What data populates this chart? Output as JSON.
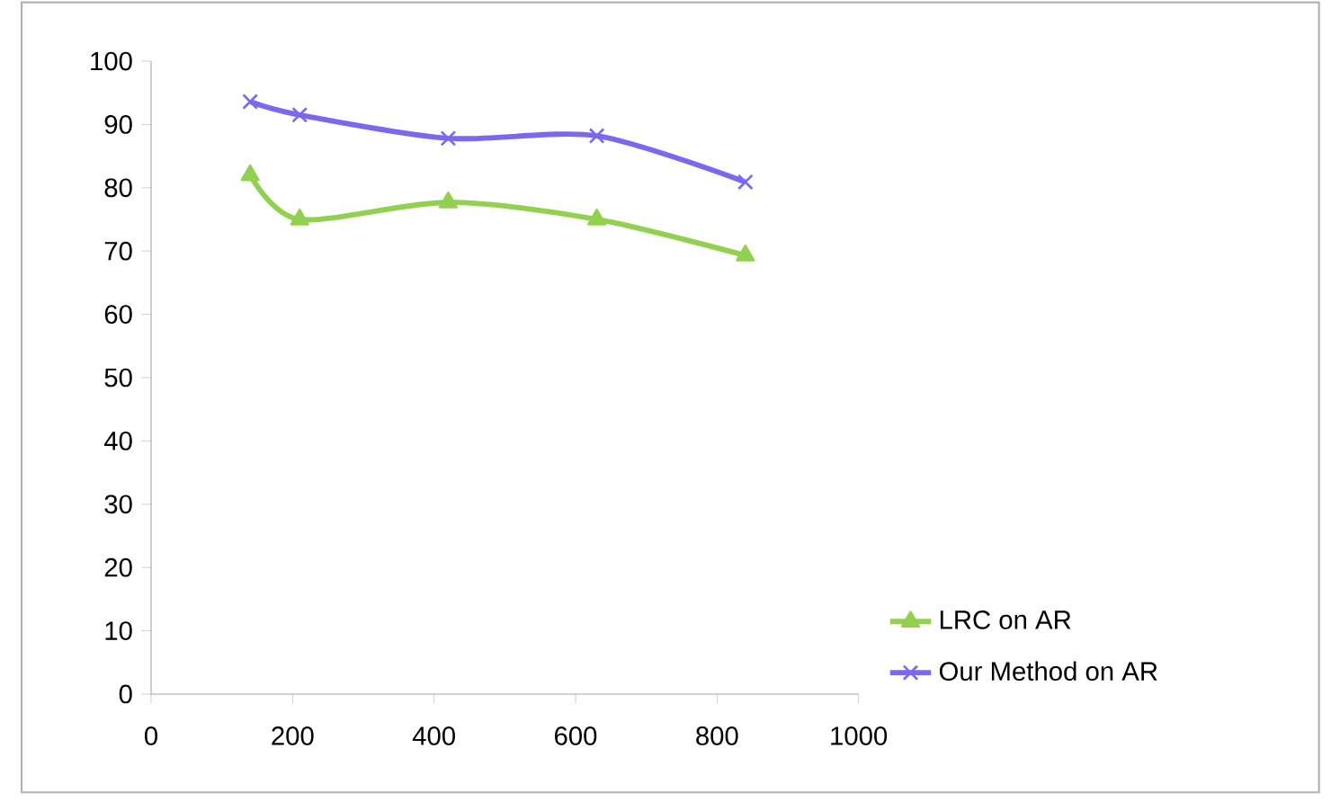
{
  "chart_data": {
    "type": "line",
    "x": [
      140,
      210,
      420,
      630,
      840
    ],
    "series": [
      {
        "name": "LRC on AR",
        "color": "#92d050",
        "marker": "triangle",
        "values": [
          82,
          75,
          77.7,
          75,
          69.3
        ]
      },
      {
        "name": "Our Method on AR",
        "color": "#7b68ee",
        "marker": "cross",
        "values": [
          93.6,
          91.5,
          87.8,
          88.2,
          80.9
        ]
      }
    ],
    "xlim": [
      0,
      1000
    ],
    "xticks": [
      0,
      200,
      400,
      600,
      800,
      1000
    ],
    "ylim": [
      0,
      100
    ],
    "yticks": [
      0,
      10,
      20,
      30,
      40,
      50,
      60,
      70,
      80,
      90,
      100
    ],
    "grid": false,
    "legend": "right",
    "line_style": "solid"
  }
}
